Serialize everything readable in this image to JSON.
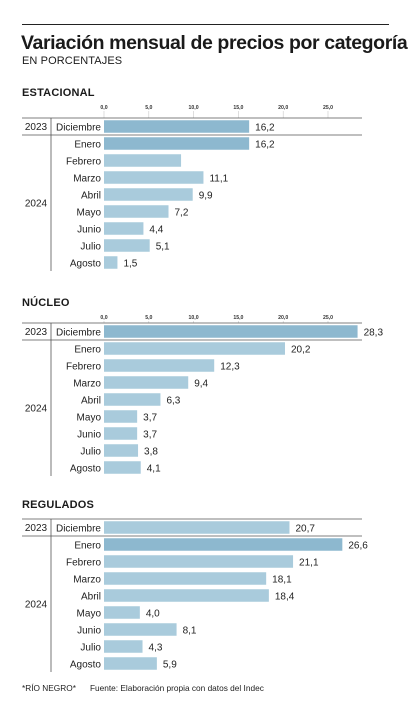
{
  "header": {
    "title": "Variación mensual de precios por categoría",
    "subtitle": "EN PORCENTAJES"
  },
  "colors": {
    "bar": "#a9cbdc",
    "bar_highlight": "#8db8cf",
    "grid": "#c9c9c9",
    "text": "#222222"
  },
  "chart_data": [
    {
      "type": "bar",
      "orientation": "horizontal",
      "title": "ESTACIONAL",
      "xlim": [
        0,
        25
      ],
      "xticks": [
        "0,0",
        "5,0",
        "10,0",
        "15,0",
        "20,0",
        "25,0"
      ],
      "groups": [
        {
          "label": "2023",
          "start": 0,
          "count": 1
        },
        {
          "label": "2024",
          "start": 1,
          "count": 8
        }
      ],
      "categories": [
        "Diciembre",
        "Enero",
        "Febrero",
        "Marzo",
        "Abril",
        "Mayo",
        "Junio",
        "Julio",
        "Agosto"
      ],
      "values": [
        16.2,
        16.2,
        8.6,
        11.1,
        9.9,
        7.2,
        4.4,
        5.1,
        1.5
      ],
      "value_labels": [
        "16,2",
        "16,2",
        "",
        "11,1",
        "9,9",
        "7,2",
        "4,4",
        "5,1",
        "1,5"
      ],
      "highlight": [
        0,
        1
      ]
    },
    {
      "type": "bar",
      "orientation": "horizontal",
      "title": "NÚCLEO",
      "xlim": [
        0,
        25
      ],
      "xticks": [
        "0,0",
        "5,0",
        "10,0",
        "15,0",
        "20,0",
        "25,0"
      ],
      "groups": [
        {
          "label": "2023",
          "start": 0,
          "count": 1
        },
        {
          "label": "2024",
          "start": 1,
          "count": 8
        }
      ],
      "categories": [
        "Diciembre",
        "Enero",
        "Febrero",
        "Marzo",
        "Abril",
        "Mayo",
        "Junio",
        "Julio",
        "Agosto"
      ],
      "values": [
        28.3,
        20.2,
        12.3,
        9.4,
        6.3,
        3.7,
        3.7,
        3.8,
        4.1
      ],
      "value_labels": [
        "28,3",
        "20,2",
        "12,3",
        "9,4",
        "6,3",
        "3,7",
        "3,7",
        "3,8",
        "4,1"
      ],
      "highlight": [
        0
      ]
    },
    {
      "type": "bar",
      "orientation": "horizontal",
      "title": "REGULADOS",
      "xlim": [
        0,
        25
      ],
      "xticks": [],
      "groups": [
        {
          "label": "2023",
          "start": 0,
          "count": 1
        },
        {
          "label": "2024",
          "start": 1,
          "count": 8
        }
      ],
      "categories": [
        "Diciembre",
        "Enero",
        "Febrero",
        "Marzo",
        "Abril",
        "Mayo",
        "Junio",
        "Julio",
        "Agosto"
      ],
      "values": [
        20.7,
        26.6,
        21.1,
        18.1,
        18.4,
        4.0,
        8.1,
        4.3,
        5.9
      ],
      "value_labels": [
        "20,7",
        "26,6",
        "21,1",
        "18,1",
        "18,4",
        "4,0",
        "8,1",
        "4,3",
        "5,9"
      ],
      "highlight": [
        1
      ]
    }
  ],
  "footer": {
    "credit": "*RÍO NEGRO*",
    "source": "Fuente: Elaboración propia con datos del Indec"
  }
}
